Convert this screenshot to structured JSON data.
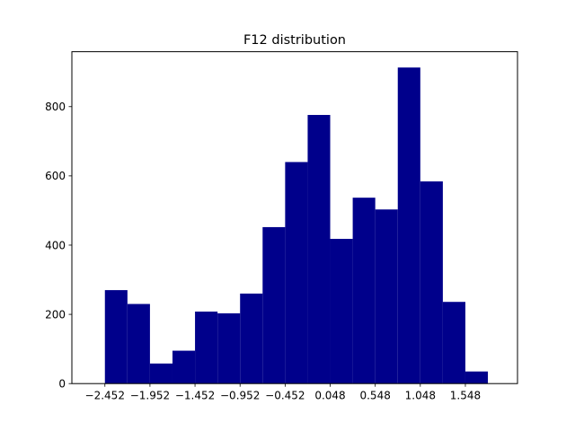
{
  "chart_data": {
    "type": "bar",
    "title": "F12 distribution",
    "xlabel": "",
    "ylabel": "",
    "bin_start": -2.452,
    "bin_width": 0.25,
    "values": [
      270,
      230,
      58,
      95,
      208,
      203,
      260,
      452,
      640,
      776,
      418,
      537,
      503,
      913,
      584,
      236,
      35
    ],
    "xticks": [
      -2.452,
      -1.952,
      -1.452,
      -0.952,
      -0.452,
      0.048,
      0.548,
      1.048,
      1.548
    ],
    "xtick_labels": [
      "−2.452",
      "−1.952",
      "−1.452",
      "−0.952",
      "−0.452",
      "0.048",
      "0.548",
      "1.048",
      "1.548"
    ],
    "yticks": [
      0,
      200,
      400,
      600,
      800
    ],
    "ytick_labels": [
      "0",
      "200",
      "400",
      "600",
      "800"
    ],
    "xlim": [
      -2.8185,
      2.1265
    ],
    "ylim": [
      0,
      958.65
    ],
    "grid": false,
    "legend": "none",
    "bar_color": "#00008b"
  }
}
